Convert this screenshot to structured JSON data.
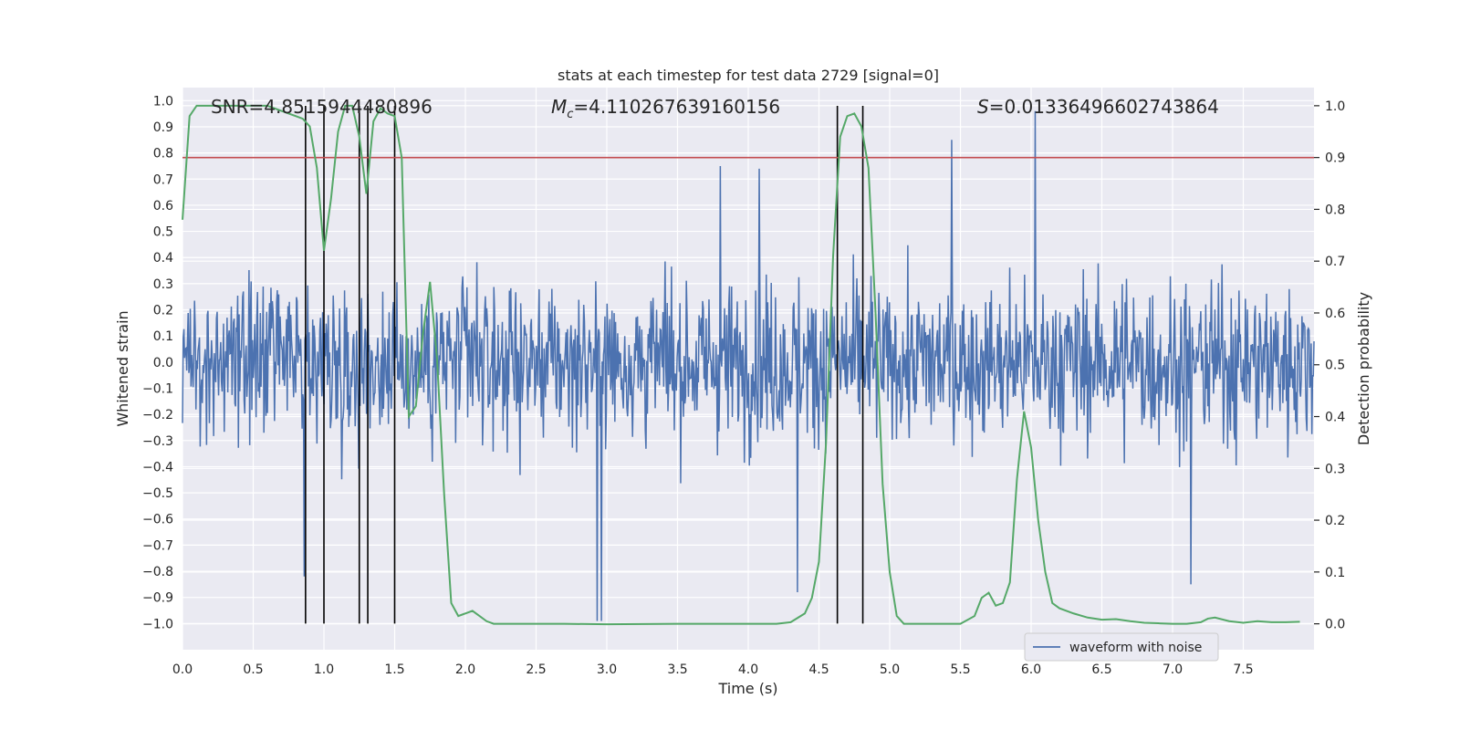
{
  "chart_data": {
    "type": "line",
    "title": "stats at each timestep for test data 2729 [signal=0]",
    "xlabel": "Time (s)",
    "ylabel_left": "Whitened strain",
    "ylabel_right": "Detection probability",
    "xlim": [
      0.0,
      8.0
    ],
    "ylim_left": [
      -1.1,
      1.05
    ],
    "ylim_right": [
      -0.05,
      1.035
    ],
    "x_ticks": [
      "0.0",
      "0.5",
      "1.0",
      "1.5",
      "2.0",
      "2.5",
      "3.0",
      "3.5",
      "4.0",
      "4.5",
      "5.0",
      "5.5",
      "6.0",
      "6.5",
      "7.0",
      "7.5"
    ],
    "y_ticks_left": [
      "1.0",
      "0.9",
      "0.8",
      "0.7",
      "0.6",
      "0.5",
      "0.4",
      "0.3",
      "0.2",
      "0.1",
      "0.0",
      "−0.1",
      "−0.2",
      "−0.3",
      "−0.4",
      "−0.5",
      "−0.6",
      "−0.7",
      "−0.8",
      "−0.9",
      "−1.0"
    ],
    "y_ticks_right": [
      "1.0",
      "0.9",
      "0.8",
      "0.7",
      "0.6",
      "0.5",
      "0.4",
      "0.3",
      "0.2",
      "0.1",
      "0.0"
    ],
    "grid": true,
    "annotations": {
      "snr": "SNR=4.8515944480896",
      "mc_symbol": "M",
      "mc_sub": "c",
      "mc_value": "=4.110267639160156",
      "s_symbol": "S",
      "s_value": "=0.01336496602743864"
    },
    "legend": {
      "placement": "lower-right",
      "entries": [
        "waveform with noise"
      ]
    },
    "threshold": {
      "axis": "right",
      "value": 0.9,
      "color": "#c44e52"
    },
    "vertical_lines_x": [
      0.87,
      1.0,
      1.25,
      1.31,
      1.5,
      4.63,
      4.81
    ],
    "vertical_lines_range_left": [
      -1.0,
      0.98
    ],
    "waveform": {
      "name": "waveform with noise",
      "color": "#4c72b0",
      "samples": 1600,
      "seed": 2729,
      "base_amplitude": 0.21,
      "spikes": [
        {
          "x": 0.86,
          "y": -0.82
        },
        {
          "x": 2.93,
          "y": -0.99
        },
        {
          "x": 2.96,
          "y": -0.99
        },
        {
          "x": 4.35,
          "y": -0.88
        },
        {
          "x": 5.44,
          "y": 0.85
        },
        {
          "x": 6.03,
          "y": 0.96
        },
        {
          "x": 7.13,
          "y": -0.85
        },
        {
          "x": 3.8,
          "y": 0.75
        },
        {
          "x": 4.08,
          "y": 0.74
        }
      ]
    },
    "detection_probability": {
      "name": "detection probability",
      "color": "#55a868",
      "x": [
        0.0,
        0.05,
        0.1,
        0.2,
        0.3,
        0.4,
        0.5,
        0.6,
        0.7,
        0.8,
        0.85,
        0.9,
        0.95,
        1.0,
        1.05,
        1.1,
        1.15,
        1.2,
        1.25,
        1.3,
        1.35,
        1.4,
        1.45,
        1.5,
        1.55,
        1.6,
        1.65,
        1.7,
        1.75,
        1.8,
        1.85,
        1.9,
        1.95,
        2.0,
        2.05,
        2.1,
        2.15,
        2.2,
        2.3,
        2.5,
        2.7,
        3.0,
        3.5,
        4.0,
        4.2,
        4.3,
        4.4,
        4.45,
        4.5,
        4.55,
        4.6,
        4.65,
        4.7,
        4.75,
        4.8,
        4.85,
        4.9,
        4.95,
        5.0,
        5.05,
        5.1,
        5.2,
        5.4,
        5.5,
        5.6,
        5.65,
        5.7,
        5.75,
        5.8,
        5.85,
        5.9,
        5.95,
        6.0,
        6.05,
        6.1,
        6.15,
        6.2,
        6.3,
        6.4,
        6.5,
        6.6,
        6.7,
        6.8,
        6.9,
        7.0,
        7.1,
        7.2,
        7.25,
        7.3,
        7.4,
        7.5,
        7.6,
        7.7,
        7.8,
        7.9
      ],
      "y": [
        0.78,
        0.98,
        1.0,
        1.0,
        1.0,
        1.0,
        1.0,
        1.0,
        0.99,
        0.98,
        0.975,
        0.96,
        0.88,
        0.72,
        0.82,
        0.95,
        1.0,
        1.0,
        0.94,
        0.83,
        0.97,
        0.995,
        0.985,
        0.98,
        0.9,
        0.4,
        0.42,
        0.56,
        0.66,
        0.51,
        0.25,
        0.04,
        0.015,
        0.02,
        0.025,
        0.015,
        0.005,
        0.0,
        0.0,
        0.0,
        0.0,
        -0.001,
        0.0,
        0.0,
        0.0,
        0.003,
        0.02,
        0.05,
        0.12,
        0.35,
        0.71,
        0.94,
        0.98,
        0.985,
        0.96,
        0.88,
        0.6,
        0.27,
        0.1,
        0.015,
        0.0,
        0.0,
        0.0,
        0.0,
        0.015,
        0.05,
        0.06,
        0.035,
        0.04,
        0.08,
        0.28,
        0.41,
        0.34,
        0.2,
        0.1,
        0.04,
        0.03,
        0.02,
        0.012,
        0.008,
        0.009,
        0.005,
        0.002,
        0.001,
        0.0,
        0.0,
        0.003,
        0.01,
        0.012,
        0.005,
        0.002,
        0.005,
        0.003,
        0.003,
        0.004
      ]
    }
  }
}
